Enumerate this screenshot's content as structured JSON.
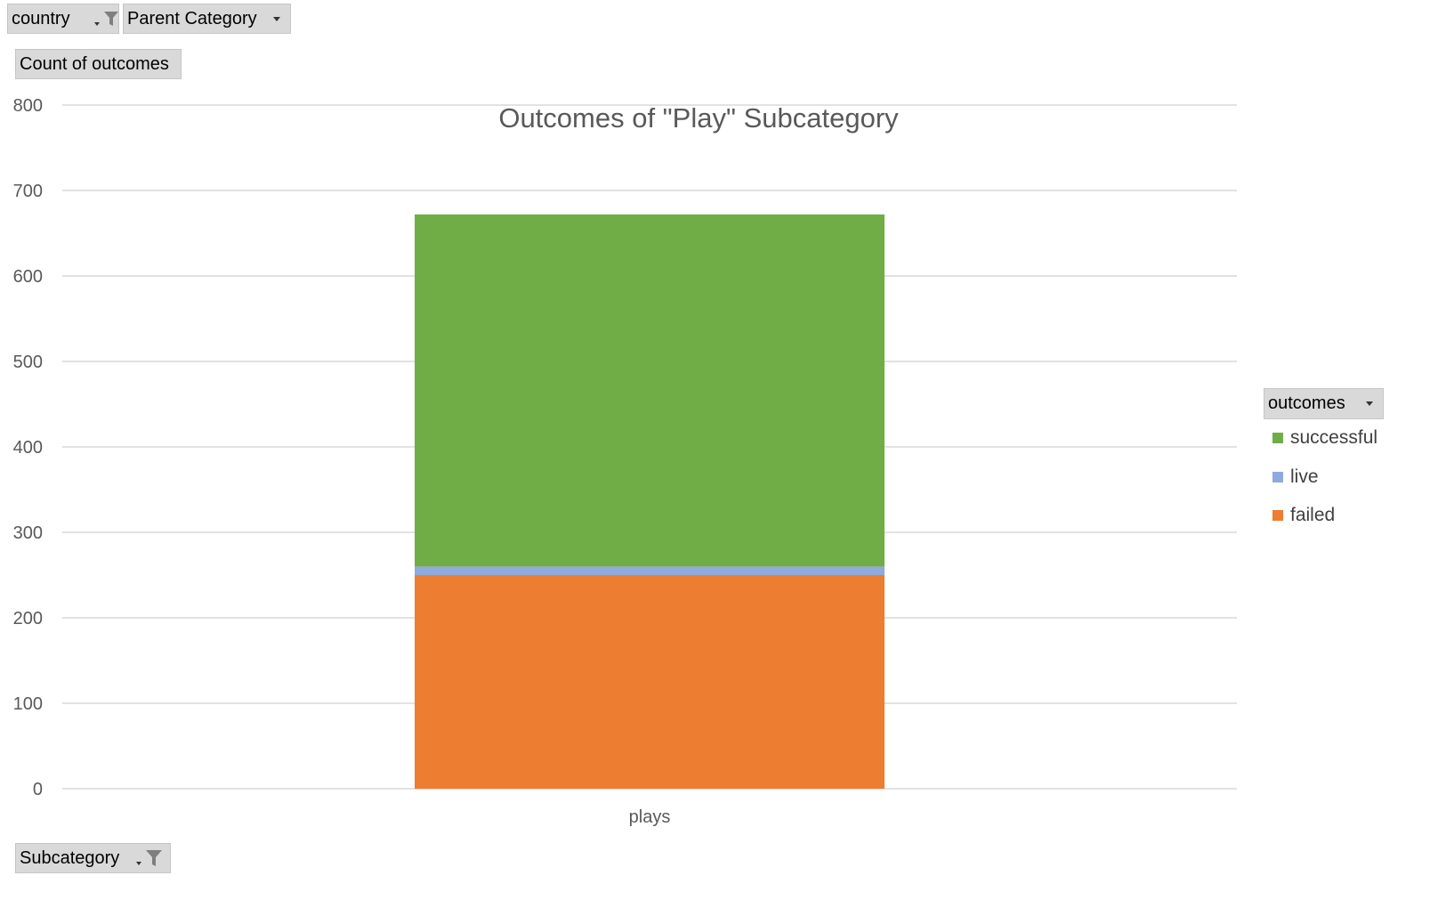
{
  "filters": {
    "country_label": "country",
    "parent_category_label": "Parent Category",
    "count_label": "Count of outcomes",
    "subcategory_label": "Subcategory",
    "outcomes_label": "outcomes"
  },
  "icons": {
    "filter": "funnel-filter-icon",
    "dropdown": "chevron-down-icon"
  },
  "chart_data": {
    "type": "bar",
    "stacked": true,
    "title": "Outcomes of \"Play\" Subcategory",
    "categories": [
      "plays"
    ],
    "series": [
      {
        "name": "failed",
        "values": [
          250
        ],
        "color": "#ED7D31"
      },
      {
        "name": "live",
        "values": [
          10
        ],
        "color": "#8FAADC"
      },
      {
        "name": "successful",
        "values": [
          412
        ],
        "color": "#70AD47"
      }
    ],
    "ylim": [
      0,
      800
    ],
    "yticks": [
      "0",
      "100",
      "200",
      "300",
      "400",
      "500",
      "600",
      "700",
      "800"
    ],
    "grid": true,
    "legend_position": "right",
    "legend_order": [
      "successful",
      "live",
      "failed"
    ]
  }
}
